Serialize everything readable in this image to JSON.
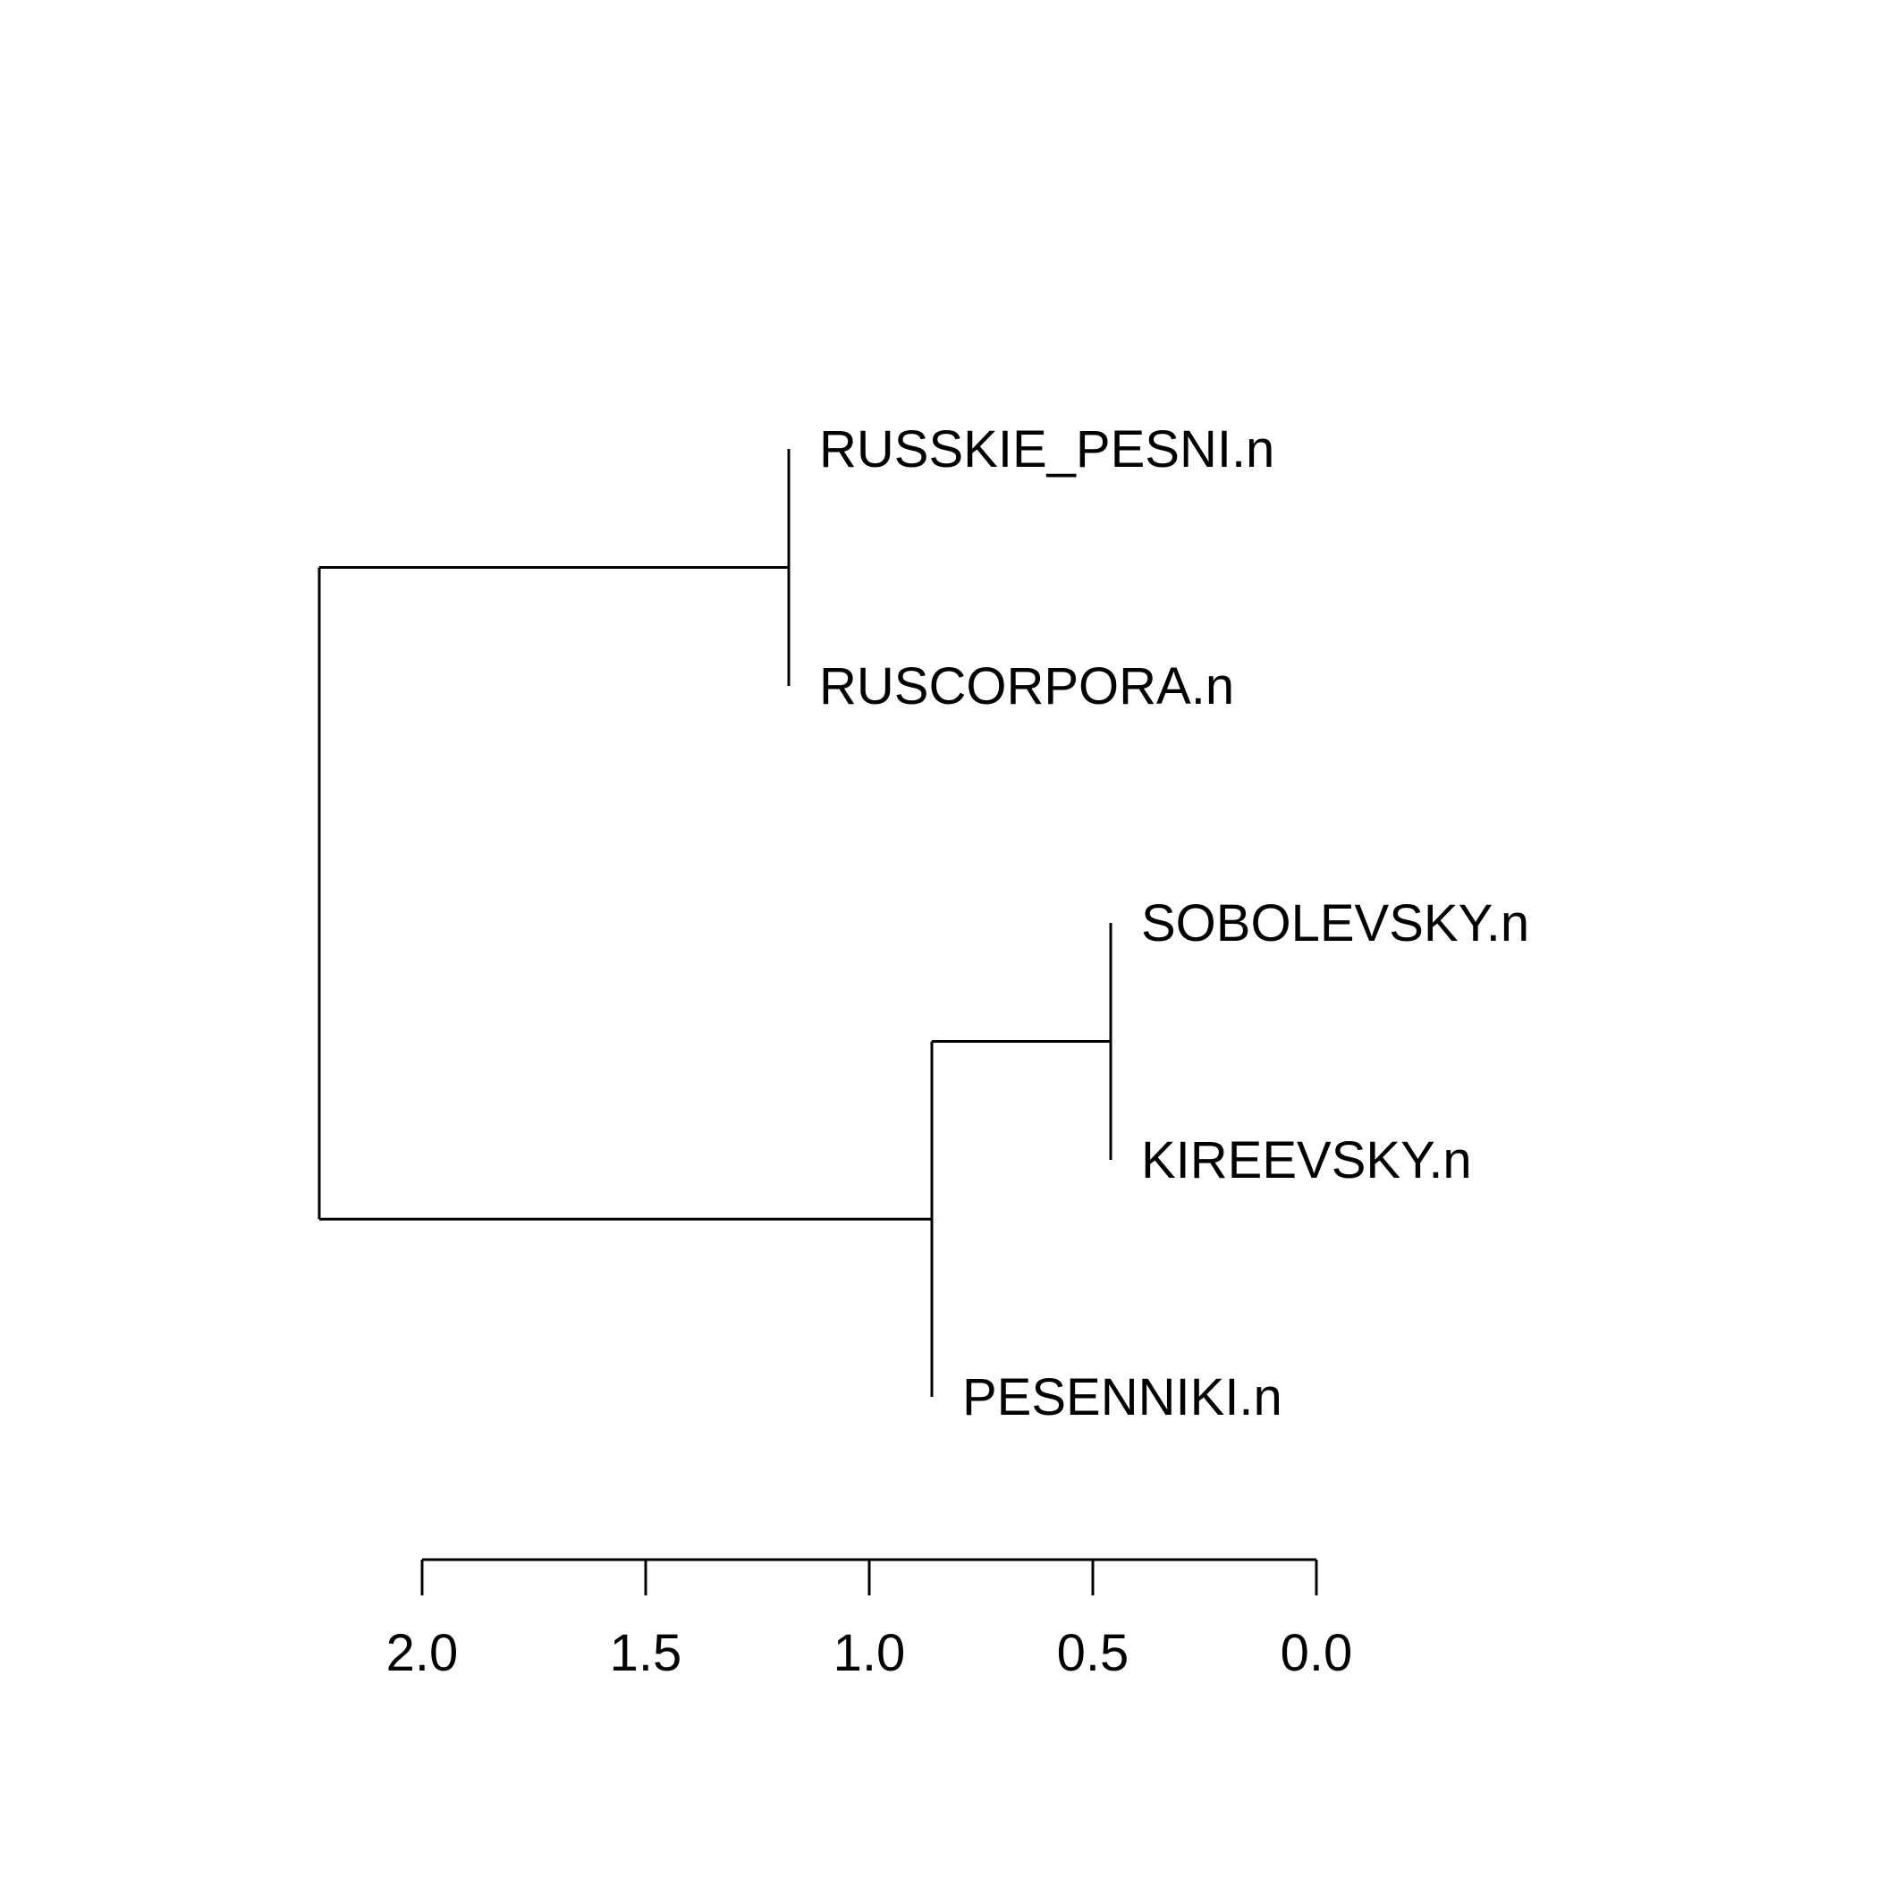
{
  "chart_data": {
    "type": "dendrogram",
    "orientation": "horizontal",
    "leaves": [
      {
        "id": "RUSSKIE_PESNI",
        "label": "RUSSKIE_PESNI.n"
      },
      {
        "id": "RUSCORPORA",
        "label": "RUSCORPORA.n"
      },
      {
        "id": "SOBOLEVSKY",
        "label": "SOBOLEVSKY.n"
      },
      {
        "id": "KIREEVSKY",
        "label": "KIREEVSKY.n"
      },
      {
        "id": "PESENNIKI",
        "label": "PESENNIKI.n"
      }
    ],
    "merges": [
      {
        "id": "m1",
        "children": [
          "SOBOLEVSKY",
          "KIREEVSKY"
        ],
        "height": 0.46
      },
      {
        "id": "m2",
        "children": [
          "m1",
          "PESENNIKI"
        ],
        "height": 0.86
      },
      {
        "id": "m3",
        "children": [
          "RUSSKIE_PESNI",
          "RUSCORPORA"
        ],
        "height": 1.18
      },
      {
        "id": "m4",
        "children": [
          "m3",
          "m2"
        ],
        "height": 2.23
      }
    ],
    "axis": {
      "ticks": [
        2.0,
        1.5,
        1.0,
        0.5,
        0.0
      ],
      "tick_labels": [
        "2.0",
        "1.5",
        "1.0",
        "0.5",
        "0.0"
      ],
      "reversed": true
    }
  }
}
